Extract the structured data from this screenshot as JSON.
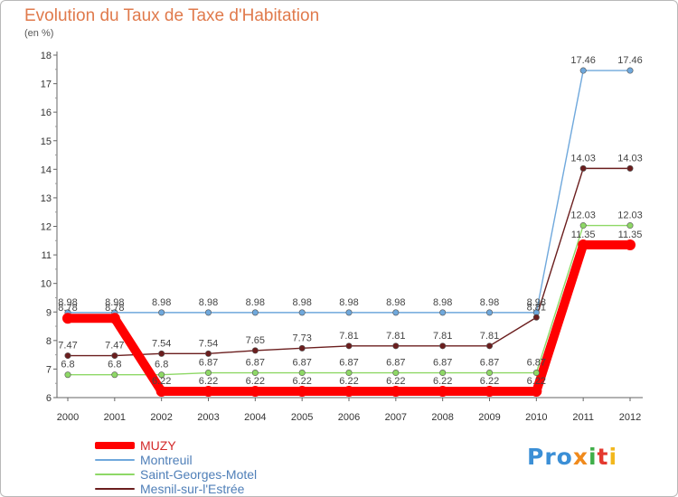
{
  "header": {
    "title": "Evolution du Taux de Taxe d'Habitation",
    "subtitle": "(en %)"
  },
  "logo": {
    "text": "Proxiti",
    "parts": [
      "Pro",
      "x",
      "i",
      "t",
      "i"
    ],
    "colors": [
      "#3b8fd6",
      "#f08a1c",
      "#3fae49",
      "#e4392f",
      "#f2b71c"
    ]
  },
  "chart_data": {
    "type": "line",
    "title": "Evolution du Taux de Taxe d'Habitation",
    "subtitle": "(en %)",
    "xlabel": "",
    "ylabel": "",
    "ylim": [
      6,
      18
    ],
    "yticks": [
      "6",
      "7",
      "8",
      "9",
      "10",
      "11",
      "12",
      "13",
      "14",
      "15",
      "16",
      "17",
      "18"
    ],
    "categories": [
      "2000",
      "2001",
      "2002",
      "2003",
      "2004",
      "2005",
      "2006",
      "2007",
      "2008",
      "2009",
      "2010",
      "2011",
      "2012"
    ],
    "grid": false,
    "legend_placement": "bottom-left",
    "series": [
      {
        "name": "MUZY",
        "color": "#ff0000",
        "values": [
          8.78,
          8.78,
          6.22,
          6.22,
          6.22,
          6.22,
          6.22,
          6.22,
          6.22,
          6.22,
          6.22,
          11.35,
          11.35
        ],
        "labels": [
          "8.78",
          "8.78",
          "6.22",
          "6.22",
          "6.22",
          "6.22",
          "6.22",
          "6.22",
          "6.22",
          "6.22",
          "6.22",
          "11.35",
          "11.35"
        ]
      },
      {
        "name": "Montreuil",
        "color": "#6fa8dc",
        "values": [
          8.98,
          8.98,
          8.98,
          8.98,
          8.98,
          8.98,
          8.98,
          8.98,
          8.98,
          8.98,
          8.98,
          17.46,
          17.46
        ],
        "labels": [
          "8.98",
          "8.98",
          "8.98",
          "8.98",
          "8.98",
          "8.98",
          "8.98",
          "8.98",
          "8.98",
          "8.98",
          "8.98",
          "17.46",
          "17.46"
        ]
      },
      {
        "name": "Saint-Georges-Motel",
        "color": "#8ed866",
        "values": [
          6.8,
          6.8,
          6.8,
          6.87,
          6.87,
          6.87,
          6.87,
          6.87,
          6.87,
          6.87,
          6.87,
          12.03,
          12.03
        ],
        "labels": [
          "6.8",
          "6.8",
          "6.8",
          "6.87",
          "6.87",
          "6.87",
          "6.87",
          "6.87",
          "6.87",
          "6.87",
          "6.87",
          "12.03",
          "12.03"
        ]
      },
      {
        "name": "Mesnil-sur-l'Estrée",
        "color": "#6b1e1e",
        "values": [
          7.47,
          7.47,
          7.54,
          7.54,
          7.65,
          7.73,
          7.81,
          7.81,
          7.81,
          7.81,
          8.81,
          14.03,
          14.03
        ],
        "labels": [
          "7.47",
          "7.47",
          "7.54",
          "7.54",
          "7.65",
          "7.73",
          "7.81",
          "7.81",
          "7.81",
          "7.81",
          "8.81",
          "14.03",
          "14.03"
        ]
      }
    ]
  }
}
